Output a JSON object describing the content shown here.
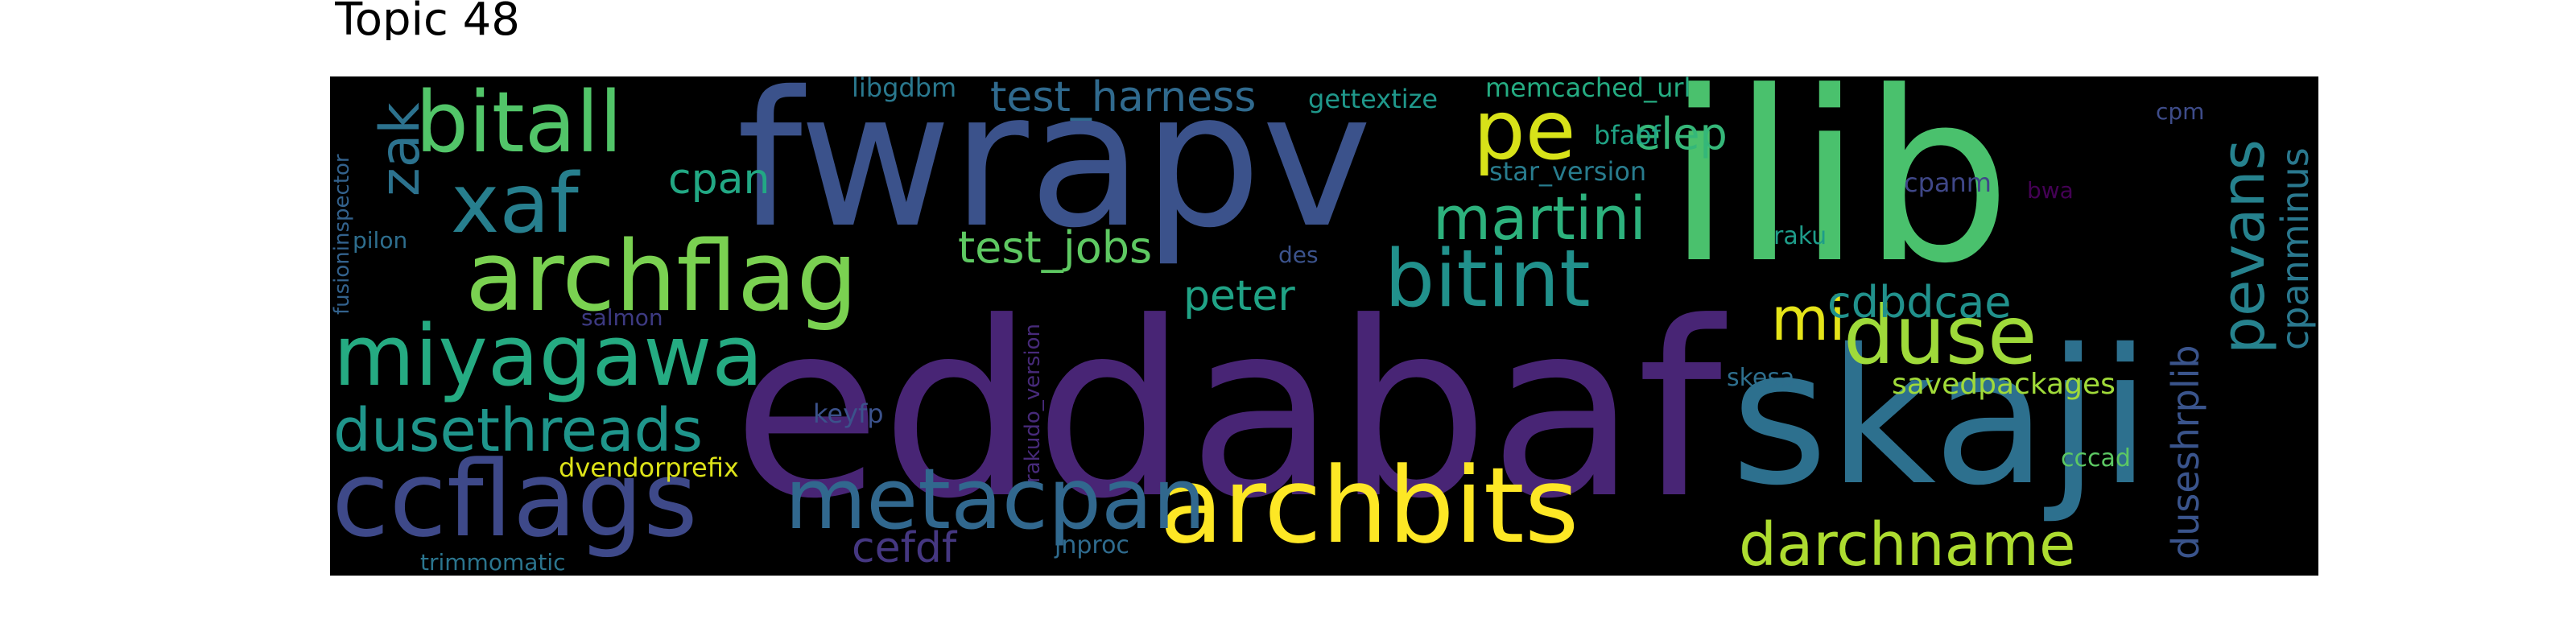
{
  "title": "Topic 48",
  "cloud": {
    "background": "#000000",
    "words": [
      {
        "text": "eddabaf",
        "color": "#482575"
      },
      {
        "text": "fwrapv",
        "color": "#3b528b"
      },
      {
        "text": "ilib",
        "color": "#4ac16d"
      },
      {
        "text": "skaji",
        "color": "#2d708e"
      },
      {
        "text": "archbits",
        "color": "#fde725"
      },
      {
        "text": "ccflags",
        "color": "#3e4989"
      },
      {
        "text": "archflag",
        "color": "#7ad151"
      },
      {
        "text": "miyagawa",
        "color": "#25ab82"
      },
      {
        "text": "bitall",
        "color": "#52c569"
      },
      {
        "text": "metacpan",
        "color": "#31688e"
      },
      {
        "text": "dusethreads",
        "color": "#1f958b"
      },
      {
        "text": "xaf",
        "color": "#277f8e"
      },
      {
        "text": "pe",
        "color": "#d8e219"
      },
      {
        "text": "bitint",
        "color": "#21918c"
      },
      {
        "text": "duse",
        "color": "#9fda3a"
      },
      {
        "text": "martini",
        "color": "#2db27d"
      },
      {
        "text": "darchname",
        "color": "#addc30"
      },
      {
        "text": "pevans",
        "color": "#26828e"
      },
      {
        "text": "zak",
        "color": "#2c728e"
      },
      {
        "text": "mi",
        "color": "#e5e419"
      },
      {
        "text": "test_harness",
        "color": "#306a8e"
      },
      {
        "text": "test_jobs",
        "color": "#5ec962"
      },
      {
        "text": "cdbdcae",
        "color": "#21918c"
      },
      {
        "text": "duseshrplib",
        "color": "#3a548c"
      },
      {
        "text": "cpanminus",
        "color": "#2a788e"
      },
      {
        "text": "peter",
        "color": "#20a386"
      },
      {
        "text": "cpan",
        "color": "#22a884"
      },
      {
        "text": "elep",
        "color": "#35b779"
      },
      {
        "text": "cefdf",
        "color": "#453781"
      },
      {
        "text": "savedpackages",
        "color": "#a0da39"
      },
      {
        "text": "dvendorprefix",
        "color": "#dde318"
      },
      {
        "text": "keyfp",
        "color": "#3b528b"
      },
      {
        "text": "libgdbm",
        "color": "#2a788e"
      },
      {
        "text": "gettextize",
        "color": "#1f988b"
      },
      {
        "text": "memcached_url",
        "color": "#25ac82"
      },
      {
        "text": "bfabf",
        "color": "#20a486"
      },
      {
        "text": "star_version",
        "color": "#287c8e"
      },
      {
        "text": "cpanm",
        "color": "#3f4788"
      },
      {
        "text": "bwa",
        "color": "#440154"
      },
      {
        "text": "cpm",
        "color": "#3e4c8a"
      },
      {
        "text": "raku",
        "color": "#1e9c89"
      },
      {
        "text": "des",
        "color": "#3b528b"
      },
      {
        "text": "skesa",
        "color": "#2e6f8e"
      },
      {
        "text": "cccad",
        "color": "#5cc863"
      },
      {
        "text": "jnproc",
        "color": "#2f6b8e"
      },
      {
        "text": "trimmomatic",
        "color": "#2b758e"
      },
      {
        "text": "salmon",
        "color": "#3d3a82"
      },
      {
        "text": "pilon",
        "color": "#2e6e8e"
      },
      {
        "text": "fusioninspector",
        "color": "#33628d"
      },
      {
        "text": "rakudo_version",
        "color": "#472a7a"
      }
    ]
  }
}
